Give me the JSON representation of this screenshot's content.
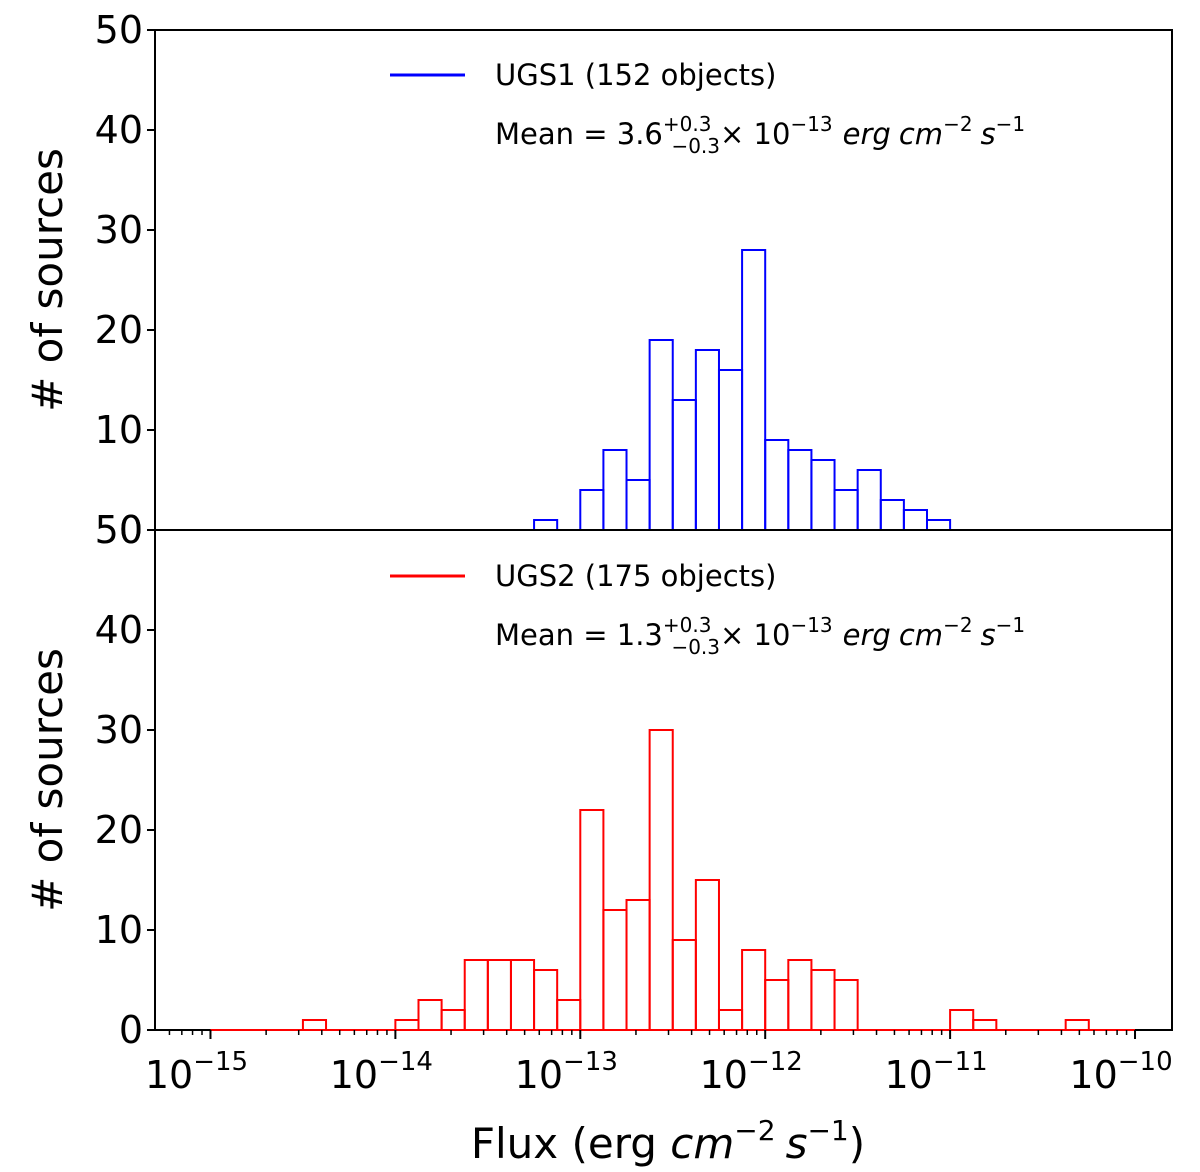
{
  "chart_data": [
    {
      "type": "bar",
      "panel": "top",
      "histtype": "step",
      "xscale": "log",
      "bin_edges_log10": [
        -15,
        -14.75,
        -14.5,
        -14.25,
        -14,
        -13.75,
        -13.5,
        -13.25,
        -13,
        -12.75,
        -12.5,
        -12.25,
        -12,
        -11.75,
        -11.5,
        -11.25,
        -11,
        -10.75,
        -10.5,
        -10.25,
        -10
      ],
      "bin_edges_log10_note": "",
      "bins_log10": [
        -15,
        -14.875,
        -14.75,
        -14.625,
        -14.5,
        -14.375,
        -14.25,
        -14.125,
        -14,
        -13.875,
        -13.75,
        -13.625,
        -13.5,
        -13.375,
        -13.25,
        -13.125,
        -13,
        -12.875,
        -12.75,
        -12.625,
        -12.5,
        -12.375,
        -12.25,
        -12.125,
        -12,
        -11.875,
        -11.75,
        -11.625,
        -11.5,
        -11.375,
        -11.25,
        -11.125,
        -11,
        -10.875,
        -10.75,
        -10.625,
        -10.5,
        -10.375,
        -10.25,
        -10.125,
        -10
      ],
      "values": [
        0,
        0,
        0,
        0,
        0,
        0,
        0,
        0,
        0,
        0,
        0,
        0,
        0,
        0,
        1,
        0,
        4,
        8,
        5,
        19,
        13,
        18,
        16,
        28,
        9,
        8,
        7,
        4,
        6,
        3,
        2,
        1,
        0,
        0,
        0,
        0,
        0,
        0,
        0,
        0
      ],
      "series": [
        {
          "name": "UGS1 (152 objects)",
          "color": "#0000ff"
        }
      ],
      "legend": {
        "label": "UGS1 (152 objects)",
        "placement": "top-center"
      },
      "annotation": {
        "prefix": "Mean = 3.6",
        "sup": "+0.3",
        "sub": "−0.3",
        "times": "× 10",
        "exp": "−13",
        "unit_erg": "erg",
        "unit_cm": "cm",
        "unit_cm_exp": "−2",
        "unit_s": "s",
        "unit_s_exp": "−1"
      },
      "title": "",
      "xlabel": "",
      "ylabel": "# of sources",
      "ylim": [
        0,
        50
      ],
      "yticks": [
        "0",
        "10",
        "20",
        "30",
        "40",
        "50"
      ],
      "xlim_log10": [
        -15.3,
        -9.8
      ]
    },
    {
      "type": "bar",
      "panel": "bottom",
      "histtype": "step",
      "xscale": "log",
      "bins_log10": [
        -15,
        -14.875,
        -14.75,
        -14.625,
        -14.5,
        -14.375,
        -14.25,
        -14.125,
        -14,
        -13.875,
        -13.75,
        -13.625,
        -13.5,
        -13.375,
        -13.25,
        -13.125,
        -13,
        -12.875,
        -12.75,
        -12.625,
        -12.5,
        -12.375,
        -12.25,
        -12.125,
        -12,
        -11.875,
        -11.75,
        -11.625,
        -11.5,
        -11.375,
        -11.25,
        -11.125,
        -11,
        -10.875,
        -10.75,
        -10.625,
        -10.5,
        -10.375,
        -10.25,
        -10.125,
        -10
      ],
      "values": [
        0,
        0,
        0,
        0,
        1,
        0,
        0,
        0,
        1,
        3,
        2,
        7,
        7,
        7,
        6,
        3,
        22,
        12,
        13,
        30,
        9,
        15,
        2,
        8,
        5,
        7,
        6,
        5,
        0,
        0,
        0,
        0,
        2,
        1,
        0,
        0,
        0,
        1,
        0,
        0
      ],
      "series": [
        {
          "name": "UGS2 (175 objects)",
          "color": "#ff0000"
        }
      ],
      "legend": {
        "label": "UGS2 (175 objects)",
        "placement": "top-center"
      },
      "annotation": {
        "prefix": "Mean = 1.3",
        "sup": "+0.3",
        "sub": "−0.3",
        "times": "× 10",
        "exp": "−13",
        "unit_erg": "erg",
        "unit_cm": "cm",
        "unit_cm_exp": "−2",
        "unit_s": "s",
        "unit_s_exp": "−1"
      },
      "title": "",
      "xlabel": "Flux (erg cm−2 s−1)",
      "xlabel_parts": {
        "pre": "Flux (erg ",
        "cm": "cm",
        "cm_exp": "−2",
        "s": "s",
        "s_exp": "−1",
        "post": ")"
      },
      "ylabel": "# of sources",
      "ylim": [
        0,
        50
      ],
      "yticks": [
        "0",
        "10",
        "20",
        "30",
        "40",
        "50"
      ],
      "xticks": [
        {
          "base": "10",
          "exp": "−15",
          "log10": -15
        },
        {
          "base": "10",
          "exp": "−14",
          "log10": -14
        },
        {
          "base": "10",
          "exp": "−13",
          "log10": -13
        },
        {
          "base": "10",
          "exp": "−12",
          "log10": -12
        },
        {
          "base": "10",
          "exp": "−11",
          "log10": -11
        },
        {
          "base": "10",
          "exp": "−10",
          "log10": -10
        }
      ],
      "xlim_log10": [
        -15.3,
        -9.8
      ]
    }
  ]
}
